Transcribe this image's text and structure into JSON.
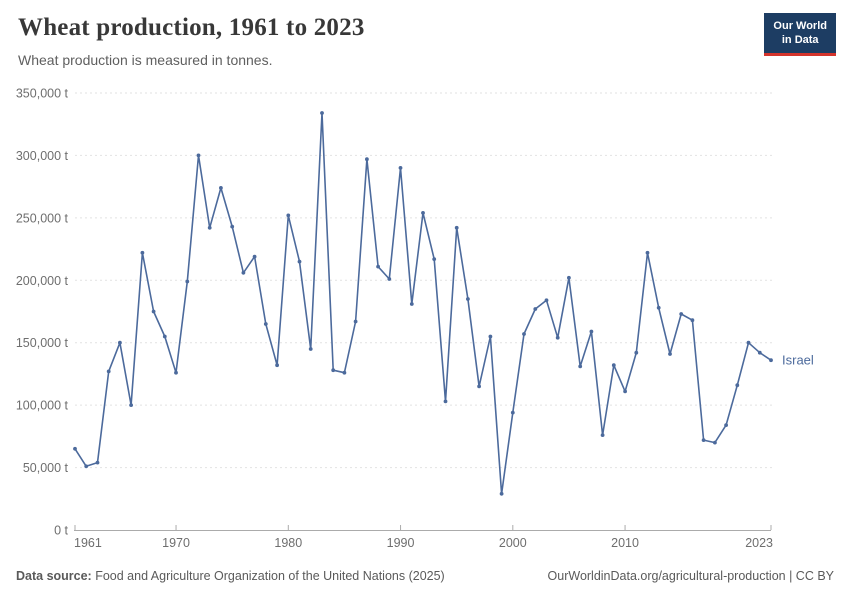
{
  "header": {
    "title": "Wheat production, 1961 to 2023",
    "subtitle": "Wheat production is measured in tonnes.",
    "logo": {
      "line1": "Our World",
      "line2": "in Data"
    }
  },
  "footer": {
    "datasource_label": "Data source:",
    "datasource_text": " Food and Agriculture Organization of the United Nations (2025)",
    "citation_text": "OurWorldinData.org/agricultural-production | CC BY"
  },
  "colors": {
    "line": "#4C6A9C",
    "axis_text": "#6e6e6e",
    "gridline": "#e2e2e2",
    "axis_line": "#ababab",
    "logo_bg": "#1d3d63",
    "logo_red": "#d4342c"
  },
  "chart_data": {
    "type": "line",
    "title": "Wheat production, 1961 to 2023",
    "subtitle": "Wheat production is measured in tonnes.",
    "xlabel": "",
    "ylabel": "",
    "unit": "t",
    "grid": true,
    "legend_position": "end-of-line-label",
    "ylim": [
      0,
      350000
    ],
    "yticks": [
      0,
      50000,
      100000,
      150000,
      200000,
      250000,
      300000,
      350000
    ],
    "xticks": [
      1961,
      1970,
      1980,
      1990,
      2000,
      2010,
      2023
    ],
    "x": [
      1961,
      1962,
      1963,
      1964,
      1965,
      1966,
      1967,
      1968,
      1969,
      1970,
      1971,
      1972,
      1973,
      1974,
      1975,
      1976,
      1977,
      1978,
      1979,
      1980,
      1981,
      1982,
      1983,
      1984,
      1985,
      1986,
      1987,
      1988,
      1989,
      1990,
      1991,
      1992,
      1993,
      1994,
      1995,
      1996,
      1997,
      1998,
      1999,
      2000,
      2001,
      2002,
      2003,
      2004,
      2005,
      2006,
      2007,
      2008,
      2009,
      2010,
      2011,
      2012,
      2013,
      2014,
      2015,
      2016,
      2017,
      2018,
      2019,
      2020,
      2021,
      2022,
      2023
    ],
    "series": [
      {
        "name": "Israel",
        "color": "#4C6A9C",
        "values": [
          65000,
          51000,
          54000,
          127000,
          150000,
          100000,
          222000,
          175000,
          155000,
          126000,
          199000,
          300000,
          242000,
          274000,
          243000,
          206000,
          219000,
          165000,
          132000,
          252000,
          215000,
          145000,
          334000,
          128000,
          126000,
          167000,
          297000,
          211000,
          201000,
          290000,
          181000,
          254000,
          217000,
          103000,
          242000,
          185000,
          115000,
          155000,
          29000,
          94000,
          157000,
          177000,
          184000,
          154000,
          202000,
          131000,
          159000,
          76000,
          132000,
          111000,
          142000,
          222000,
          178000,
          141000,
          173000,
          168000,
          72000,
          70000,
          84000,
          116000,
          150000,
          142000,
          136000
        ]
      }
    ]
  }
}
